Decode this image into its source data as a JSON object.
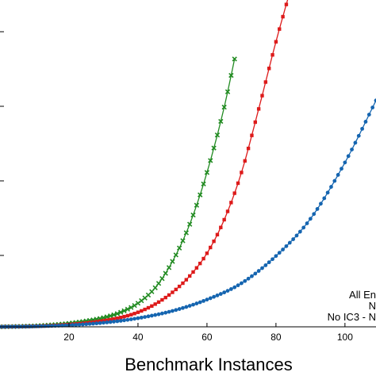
{
  "chart_data": {
    "type": "line",
    "title": "",
    "xlabel": "Benchmark Instances",
    "ylabel": "",
    "xlim": [
      0,
      109
    ],
    "ylim": [
      0,
      3600
    ],
    "grid": false,
    "legend_position": "bottom-right",
    "x_ticks": [
      20,
      40,
      60,
      80,
      100
    ],
    "x_tick_labels": [
      "20",
      "40",
      "60",
      "80",
      "100"
    ],
    "legend_entries": [
      "All En",
      "N",
      "No IC3 - N"
    ],
    "series": [
      {
        "name": "",
        "color": "#228b22",
        "marker": "x",
        "x": [
          0,
          5,
          10,
          15,
          20,
          25,
          30,
          35,
          40,
          45,
          50,
          55,
          60,
          65,
          68
        ],
        "y": [
          0,
          4,
          10,
          21,
          38,
          64,
          100,
          160,
          260,
          430,
          720,
          1130,
          1700,
          2420,
          2950
        ]
      },
      {
        "name": "",
        "color": "#dd1a1a",
        "marker": "square",
        "x": [
          0,
          5,
          10,
          15,
          20,
          25,
          30,
          35,
          40,
          45,
          50,
          55,
          60,
          65,
          70,
          75,
          80,
          85
        ],
        "y": [
          0,
          2,
          6,
          13,
          25,
          42,
          67,
          103,
          160,
          250,
          380,
          560,
          810,
          1180,
          1700,
          2400,
          3140,
          3820
        ]
      },
      {
        "name": "",
        "color": "#1565b0",
        "marker": "circle",
        "x": [
          0,
          10,
          20,
          30,
          40,
          50,
          60,
          70,
          80,
          90,
          100,
          110
        ],
        "y": [
          0,
          5,
          18,
          45,
          95,
          175,
          300,
          480,
          780,
          1190,
          1810,
          2570
        ]
      }
    ]
  }
}
